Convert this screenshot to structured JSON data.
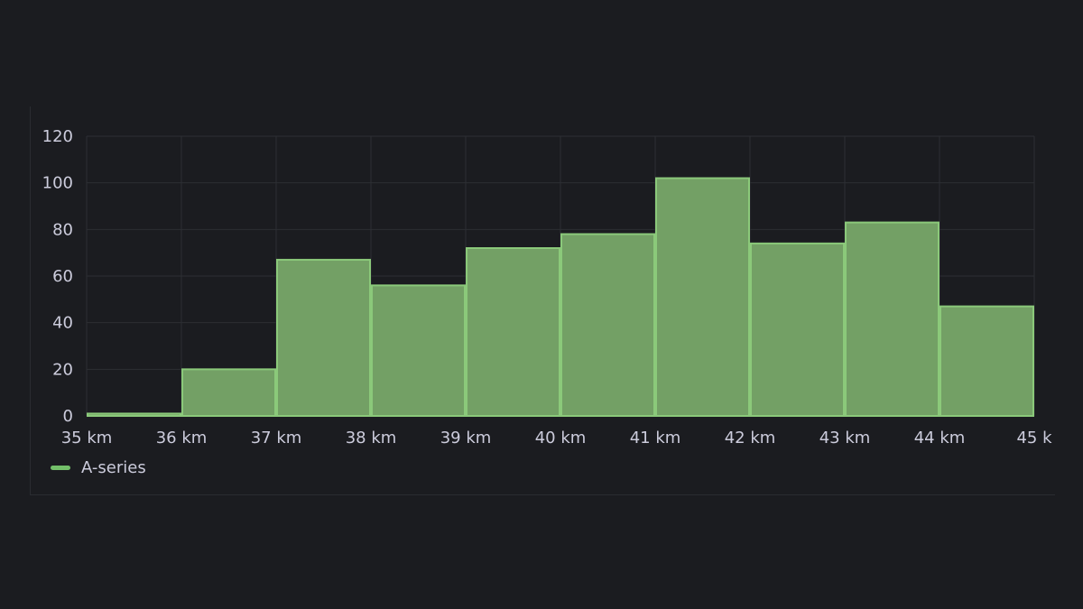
{
  "chart_data": {
    "type": "bar",
    "title": "",
    "xlabel": "",
    "ylabel": "",
    "bin_edges": [
      35,
      36,
      37,
      38,
      39,
      40,
      41,
      42,
      43,
      44,
      45
    ],
    "x_tick_labels": [
      "35 km",
      "36 km",
      "37 km",
      "38 km",
      "39 km",
      "40 km",
      "41 km",
      "42 km",
      "43 km",
      "44 km",
      "45 k"
    ],
    "y_ticks": [
      0,
      20,
      40,
      60,
      80,
      100,
      120
    ],
    "ylim": [
      0,
      120
    ],
    "grid": true,
    "legend_position": "bottom-left",
    "series": [
      {
        "name": "A-series",
        "values": [
          1,
          20,
          67,
          56,
          72,
          78,
          102,
          74,
          83,
          47
        ]
      }
    ]
  },
  "colors": {
    "background": "#1b1c20",
    "grid": "#2c2e33",
    "bar_fill": "#73a065",
    "bar_stroke": "#8bc97a",
    "legend_swatch": "#73bf69"
  }
}
